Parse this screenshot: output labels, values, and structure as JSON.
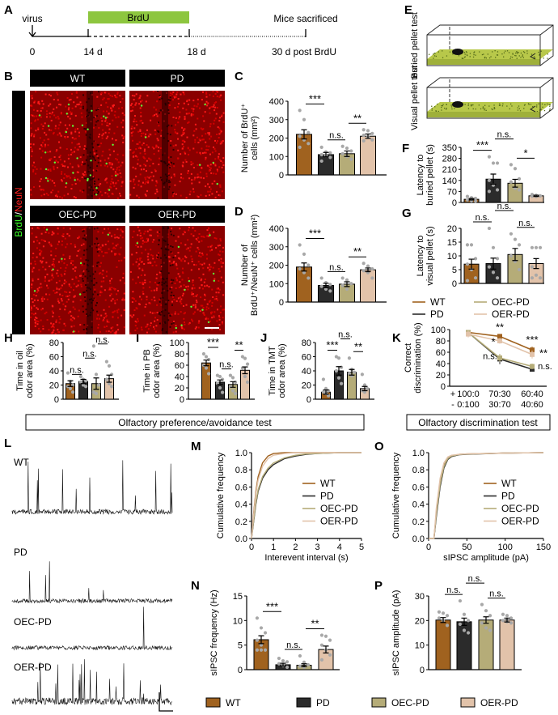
{
  "colors": {
    "WT": "#a0621f",
    "PD": "#2b2b2b",
    "OEC-PD": "#b5ac78",
    "OER-PD": "#e2c3aa",
    "brdu_bar": "#8dc63f",
    "points": "#a8a8a8"
  },
  "groups": [
    "WT",
    "PD",
    "OEC-PD",
    "OER-PD"
  ],
  "panel_letters": {
    "A": "A",
    "B": "B",
    "C": "C",
    "D": "D",
    "E": "E",
    "F": "F",
    "G": "G",
    "H": "H",
    "I": "I",
    "J": "J",
    "K": "K",
    "L": "L",
    "M": "M",
    "N": "N",
    "O": "O",
    "P": "P"
  },
  "timeline": {
    "virus": "virus",
    "brdu": "BrdU",
    "end_label": "Mice sacrificed",
    "ticks": [
      "0",
      "14 d",
      "18 d",
      "30 d post BrdU"
    ]
  },
  "images": {
    "headers": [
      "WT",
      "PD",
      "OEC-PD",
      "OER-PD"
    ],
    "side_label_green": "BrdU",
    "side_label_sep": "/",
    "side_label_red": "NeuN"
  },
  "pellet_tests": {
    "buried": "Buried pellet test",
    "visual": "Visual pellet test"
  },
  "section_boxes": {
    "preference": "Olfactory preference/avoidance test",
    "discrimination": "Olfactory discrimination test"
  },
  "traces": {
    "labels": [
      "WT",
      "PD",
      "OEC-PD",
      "OER-PD"
    ]
  },
  "chart_data": [
    {
      "id": "C",
      "type": "bar",
      "ylabel": [
        "Number of BrdU⁺",
        "cells (mm²)"
      ],
      "ylim": [
        0,
        400
      ],
      "yticks": [
        0,
        100,
        200,
        300,
        400
      ],
      "values": [
        220,
        110,
        115,
        210
      ],
      "sem": [
        25,
        12,
        15,
        12
      ],
      "points": [
        [
          350,
          300,
          230,
          210,
          190,
          170,
          150
        ],
        [
          150,
          125,
          120,
          110,
          105,
          95,
          75
        ],
        [
          155,
          145,
          130,
          115,
          100,
          85
        ],
        [
          245,
          240,
          225,
          215,
          205,
          190,
          185
        ]
      ],
      "sig": [
        {
          "from": 0,
          "to": 1,
          "label": "***"
        },
        {
          "from": 1,
          "to": 2,
          "label": "n.s."
        },
        {
          "from": 2,
          "to": 3,
          "label": "**"
        }
      ]
    },
    {
      "id": "D",
      "type": "bar",
      "ylabel": [
        "Number of",
        "BrdU⁺/NeuN⁺ cells (mm²)"
      ],
      "ylim": [
        0,
        400
      ],
      "yticks": [
        0,
        100,
        200,
        300,
        400
      ],
      "values": [
        190,
        90,
        97,
        175
      ],
      "sem": [
        22,
        12,
        13,
        10
      ],
      "points": [
        [
          310,
          260,
          200,
          180,
          160,
          130
        ],
        [
          130,
          105,
          95,
          85,
          70,
          60
        ],
        [
          130,
          120,
          100,
          90,
          70
        ],
        [
          210,
          195,
          180,
          170,
          160,
          130
        ]
      ],
      "sig": [
        {
          "from": 0,
          "to": 1,
          "label": "***"
        },
        {
          "from": 1,
          "to": 2,
          "label": "n.s."
        },
        {
          "from": 2,
          "to": 3,
          "label": "**"
        }
      ]
    },
    {
      "id": "F",
      "type": "bar",
      "ylabel": [
        "Latency to",
        "buried pellet (s)"
      ],
      "ylim": [
        0,
        350
      ],
      "yticks": [
        0,
        70,
        140,
        210,
        280,
        350
      ],
      "values": [
        20,
        148,
        122,
        42
      ],
      "sem": [
        5,
        32,
        25,
        4
      ],
      "points": [
        [
          38,
          30,
          25,
          15,
          10,
          8
        ],
        [
          290,
          250,
          250,
          140,
          110,
          80,
          70
        ],
        [
          240,
          215,
          150,
          130,
          90,
          80
        ],
        [
          50,
          45,
          42,
          40,
          38
        ]
      ],
      "sig": [
        {
          "from": 0,
          "to": 1,
          "label": "***"
        },
        {
          "from": 1,
          "to": 2,
          "label": "n.s."
        },
        {
          "from": 2,
          "to": 3,
          "label": "*"
        }
      ]
    },
    {
      "id": "G",
      "type": "bar",
      "ylabel": [
        "Latency to",
        "visual pellet (s)"
      ],
      "ylim": [
        0,
        20
      ],
      "yticks": [
        0,
        5,
        10,
        15,
        20
      ],
      "values": [
        7,
        7.2,
        10.5,
        7.2
      ],
      "sem": [
        1.8,
        2,
        2.2,
        1.8
      ],
      "points": [
        [
          14,
          14,
          9,
          7,
          5,
          2,
          1
        ],
        [
          20,
          13,
          9,
          6,
          4,
          2
        ],
        [
          18,
          16,
          14,
          10,
          8,
          5
        ],
        [
          13,
          13,
          13,
          6,
          3,
          2,
          2
        ]
      ],
      "sig": [
        {
          "from": 0,
          "to": 1,
          "label": "n.s."
        },
        {
          "from": 1,
          "to": 2,
          "label": "n.s."
        },
        {
          "from": 2,
          "to": 3,
          "label": "n.s."
        }
      ]
    },
    {
      "id": "H",
      "type": "bar",
      "ylabel": [
        "Time in oil",
        "odor area (%)"
      ],
      "ylim": [
        0,
        80
      ],
      "yticks": [
        0,
        20,
        40,
        60,
        80
      ],
      "values": [
        22,
        25,
        22,
        29
      ],
      "sem": [
        4,
        3,
        8,
        5
      ],
      "points": [
        [
          37,
          25,
          20,
          18,
          15,
          10
        ],
        [
          32,
          28,
          26,
          24,
          20,
          18
        ],
        [
          75,
          35,
          20,
          10,
          8
        ],
        [
          53,
          47,
          35,
          28,
          22,
          18
        ]
      ],
      "sig": [
        {
          "from": 0,
          "to": 1,
          "label": "n.s."
        },
        {
          "from": 1,
          "to": 2,
          "label": "n.s."
        },
        {
          "from": 2,
          "to": 3,
          "label": "n.s."
        }
      ]
    },
    {
      "id": "I",
      "type": "bar",
      "ylabel": [
        "Time in PB",
        "odor area (%)"
      ],
      "ylim": [
        0,
        100
      ],
      "yticks": [
        0,
        20,
        40,
        60,
        80,
        100
      ],
      "values": [
        64,
        30,
        26,
        51
      ],
      "sem": [
        5,
        4,
        5,
        6
      ],
      "points": [
        [
          80,
          75,
          70,
          60,
          55,
          45
        ],
        [
          42,
          40,
          35,
          28,
          20,
          12
        ],
        [
          42,
          38,
          30,
          22,
          15,
          10
        ],
        [
          75,
          72,
          62,
          55,
          40,
          30
        ]
      ],
      "sig": [
        {
          "from": 0,
          "to": 1,
          "label": "***"
        },
        {
          "from": 1,
          "to": 2,
          "label": "n.s."
        },
        {
          "from": 2,
          "to": 3,
          "label": "**"
        }
      ]
    },
    {
      "id": "J",
      "type": "bar",
      "ylabel": [
        "Time in TMT",
        "odor area (%)"
      ],
      "ylim": [
        0,
        80
      ],
      "yticks": [
        0,
        20,
        40,
        60,
        80
      ],
      "values": [
        10,
        40,
        38,
        15
      ],
      "sem": [
        3,
        6,
        4,
        3
      ],
      "points": [
        [
          28,
          15,
          12,
          10,
          8,
          5
        ],
        [
          60,
          58,
          45,
          40,
          30,
          22
        ],
        [
          58,
          42,
          38,
          36,
          33
        ],
        [
          35,
          20,
          15,
          12,
          10
        ]
      ],
      "sig": [
        {
          "from": 0,
          "to": 1,
          "label": "***"
        },
        {
          "from": 1,
          "to": 2,
          "label": "n.s."
        },
        {
          "from": 2,
          "to": 3,
          "label": "**"
        }
      ]
    },
    {
      "id": "K",
      "type": "line",
      "ylabel": [
        "Correct",
        "discrimination (%)"
      ],
      "ylim": [
        0,
        100
      ],
      "yticks": [
        0,
        20,
        40,
        60,
        80,
        100
      ],
      "row_prefixes": [
        "+",
        "-"
      ],
      "categories": [
        [
          "100:0",
          "0:100"
        ],
        [
          "70:30",
          "30:70"
        ],
        [
          "60:40",
          "40:60"
        ]
      ],
      "series": [
        {
          "name": "WT",
          "values": [
            95,
            88,
            64
          ],
          "sem": [
            3,
            4,
            6
          ]
        },
        {
          "name": "PD",
          "values": [
            95,
            48,
            30
          ],
          "sem": [
            3,
            9,
            4
          ]
        },
        {
          "name": "OEC-PD",
          "values": [
            95,
            50,
            35
          ],
          "sem": [
            3,
            7,
            5
          ]
        },
        {
          "name": "OER-PD",
          "values": [
            92,
            80,
            56
          ],
          "sem": [
            6,
            5,
            7
          ]
        }
      ],
      "annotations": [
        {
          "x": 1,
          "y": 98,
          "label": "**"
        },
        {
          "x": 1,
          "y": 72,
          "label": "*"
        },
        {
          "x": 1,
          "y": 48,
          "label": "n.s."
        },
        {
          "x": 2,
          "y": 76,
          "label": "***"
        },
        {
          "x": 2,
          "y": 52,
          "label": "**"
        },
        {
          "x": 2,
          "y": 30,
          "label": "n.s."
        }
      ]
    },
    {
      "id": "M",
      "type": "line",
      "xlabel": "Interevent interval (s)",
      "ylabel": [
        "Cumulative frequency"
      ],
      "xlim": [
        0,
        5
      ],
      "xticks": [
        0,
        1,
        2,
        3,
        4,
        5
      ],
      "ylim": [
        0,
        1
      ],
      "yticks": [
        "0.0",
        "0.2",
        "0.4",
        "0.6",
        "0.8",
        "1.0"
      ],
      "x": [
        0,
        0.1,
        0.2,
        0.3,
        0.5,
        0.75,
        1,
        1.5,
        2,
        2.5,
        3,
        4,
        5
      ],
      "series": [
        {
          "name": "WT",
          "values": [
            0,
            0.3,
            0.55,
            0.72,
            0.88,
            0.96,
            0.99,
            1,
            1,
            1,
            1,
            1,
            1
          ]
        },
        {
          "name": "PD",
          "values": [
            0,
            0.2,
            0.4,
            0.55,
            0.7,
            0.8,
            0.86,
            0.93,
            0.96,
            0.98,
            0.99,
            1,
            1
          ]
        },
        {
          "name": "OEC-PD",
          "values": [
            0,
            0.21,
            0.42,
            0.57,
            0.72,
            0.82,
            0.88,
            0.94,
            0.97,
            0.985,
            0.99,
            1,
            1
          ]
        },
        {
          "name": "OER-PD",
          "values": [
            0,
            0.28,
            0.52,
            0.68,
            0.84,
            0.93,
            0.97,
            0.99,
            1,
            1,
            1,
            1,
            1
          ]
        }
      ]
    },
    {
      "id": "O",
      "type": "line",
      "xlabel": "sIPSC amplitude (pA)",
      "ylabel": [
        "Cumulative frequency"
      ],
      "xlim": [
        0,
        150
      ],
      "xticks": [
        0,
        50,
        100,
        150
      ],
      "ylim": [
        0,
        1
      ],
      "yticks": [
        "0.0",
        "0.2",
        "0.4",
        "0.6",
        "0.8",
        "1.0"
      ],
      "x": [
        0,
        7,
        10,
        15,
        20,
        25,
        30,
        40,
        50,
        100,
        150
      ],
      "series": [
        {
          "name": "WT",
          "values": [
            0,
            0,
            0.3,
            0.65,
            0.85,
            0.93,
            0.96,
            0.98,
            0.985,
            0.995,
            1
          ]
        },
        {
          "name": "PD",
          "values": [
            0,
            0,
            0.25,
            0.6,
            0.82,
            0.92,
            0.955,
            0.975,
            0.98,
            0.995,
            1
          ]
        },
        {
          "name": "OEC-PD",
          "values": [
            0,
            0,
            0.28,
            0.63,
            0.84,
            0.93,
            0.96,
            0.978,
            0.983,
            0.995,
            1
          ]
        },
        {
          "name": "OER-PD",
          "values": [
            0,
            0,
            0.35,
            0.7,
            0.88,
            0.95,
            0.97,
            0.98,
            0.985,
            0.995,
            1
          ]
        }
      ]
    },
    {
      "id": "N",
      "type": "bar",
      "ylabel": [
        "sIPSC frequency (Hz)"
      ],
      "ylim": [
        0,
        15
      ],
      "yticks": [
        0,
        5,
        10,
        15
      ],
      "values": [
        6.1,
        1.0,
        0.9,
        4.1
      ],
      "sem": [
        0.8,
        0.3,
        0.3,
        0.7
      ],
      "points": [
        [
          10.5,
          8.5,
          7.5,
          6,
          5,
          4,
          4,
          4
        ],
        [
          2.3,
          1.8,
          1.6,
          1.2,
          0.8,
          0.5
        ],
        [
          2.8,
          1.5,
          1,
          0.7,
          0.5
        ],
        [
          7,
          6.8,
          6,
          5,
          4,
          3,
          2
        ]
      ],
      "sig": [
        {
          "from": 0,
          "to": 1,
          "label": "***"
        },
        {
          "from": 1,
          "to": 2,
          "label": "n.s."
        },
        {
          "from": 2,
          "to": 3,
          "label": "**"
        }
      ]
    },
    {
      "id": "P",
      "type": "bar",
      "ylabel": [
        "sIPSC amplitude (pA)"
      ],
      "ylim": [
        0,
        30
      ],
      "yticks": [
        0,
        10,
        20,
        30
      ],
      "values": [
        20.2,
        19.5,
        20.2,
        20.2
      ],
      "sem": [
        1,
        1.5,
        1.3,
        0.8
      ],
      "points": [
        [
          23.5,
          23,
          22,
          21,
          20,
          18
        ],
        [
          28,
          22.5,
          20,
          18.5,
          16,
          15
        ],
        [
          26.5,
          24,
          22,
          19,
          17,
          16
        ],
        [
          22.5,
          22,
          21,
          20,
          19.5,
          19
        ]
      ],
      "sig": [
        {
          "from": 0,
          "to": 1,
          "label": "n.s."
        },
        {
          "from": 1,
          "to": 2,
          "label": "n.s."
        },
        {
          "from": 2,
          "to": 3,
          "label": "n.s."
        }
      ]
    }
  ],
  "legend": {
    "items": [
      "WT",
      "PD",
      "OEC-PD",
      "OER-PD"
    ]
  }
}
